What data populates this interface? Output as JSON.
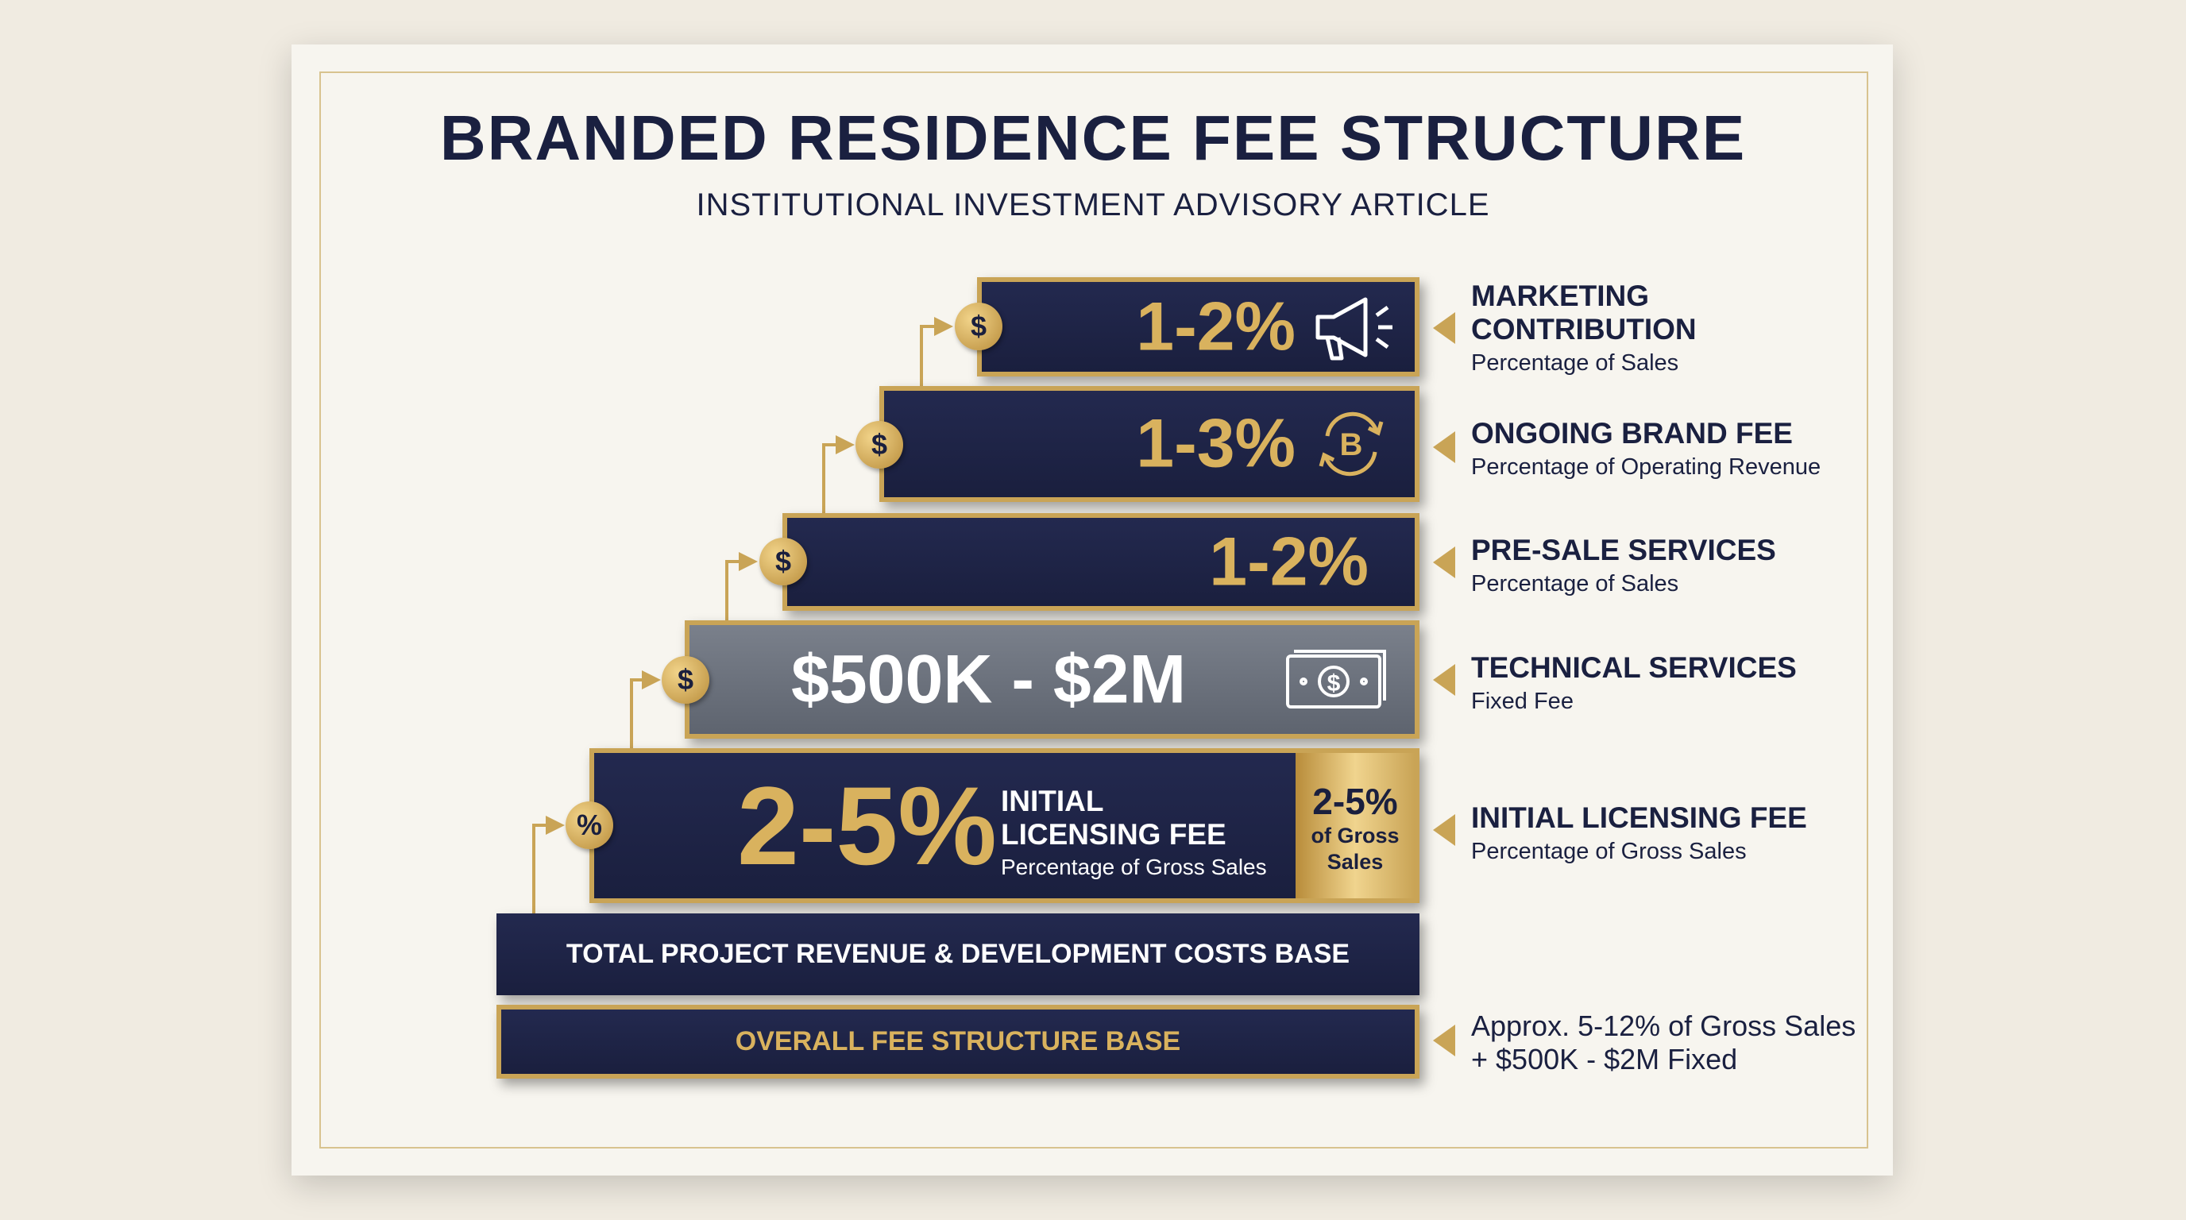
{
  "header": {
    "title": "BRANDED RESIDENCE FEE STRUCTURE",
    "subtitle": "INSTITUTIONAL INVESTMENT ADVISORY ARTICLE"
  },
  "tiers": [
    {
      "value": "1-2%",
      "coin": "$",
      "icon": "megaphone-icon",
      "label": "MARKETING",
      "label2": "CONTRIBUTION",
      "sub": "Percentage of Sales"
    },
    {
      "value": "1-3%",
      "coin": "$",
      "icon": "coin-cycle-icon",
      "label": "ONGOING BRAND FEE",
      "sub": "Percentage of Operating Revenue"
    },
    {
      "value": "1-2%",
      "coin": "$",
      "label": "PRE-SALE SERVICES",
      "sub": "Percentage of Sales"
    },
    {
      "value": "$500K - $2M",
      "coin": "$",
      "icon": "money-gear-icon",
      "label": "TECHNICAL SERVICES",
      "sub": "Fixed Fee"
    },
    {
      "value": "2-5%",
      "coin": "%",
      "inner_title1": "INITIAL",
      "inner_title2": "LICENSING FEE",
      "inner_sub": "Percentage of Gross Sales",
      "side_value": "2-5%",
      "side_sub1": "of Gross",
      "side_sub2": "Sales",
      "label": "INITIAL LICENSING FEE",
      "sub": "Percentage of Gross Sales"
    }
  ],
  "base": {
    "revenue": "TOTAL PROJECT REVENUE & DEVELOPMENT COSTS BASE",
    "overall": "OVERALL FEE STRUCTURE BASE",
    "summary1": "Approx. 5-12% of Gross Sales",
    "summary2": "+ $500K - $2M Fixed"
  },
  "colors": {
    "navy": "#1a1f3e",
    "gold": "#c9a456",
    "gray": "#6b717c",
    "background": "#f0ebe1"
  }
}
